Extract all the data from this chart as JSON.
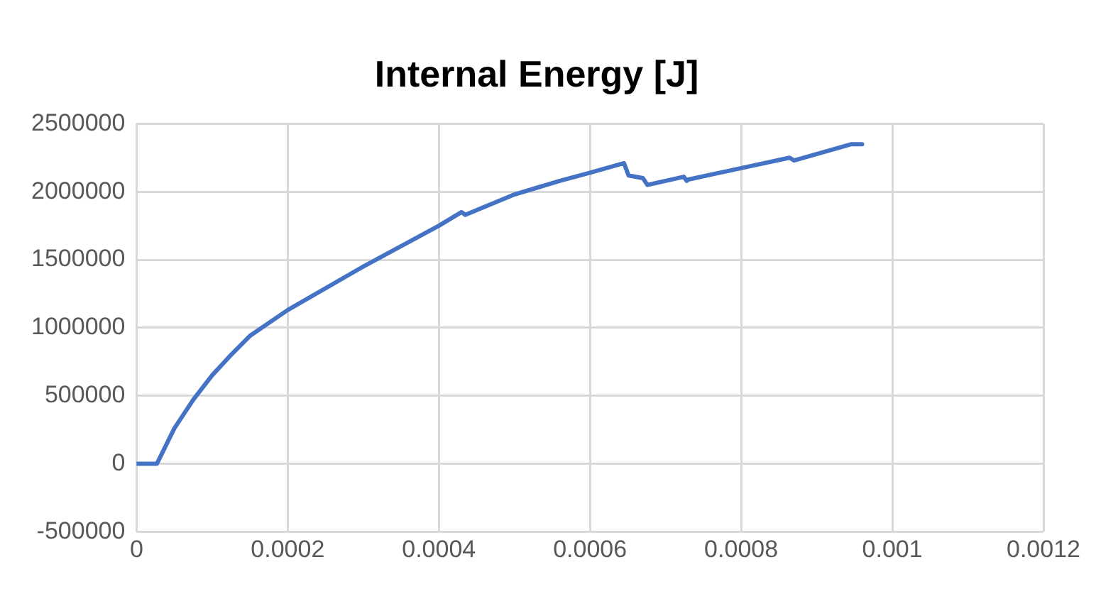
{
  "chart_data": {
    "type": "line",
    "title": "Internal Energy [J]",
    "x": [
      0,
      2.7e-05,
      5e-05,
      7.5e-05,
      0.0001,
      0.000125,
      0.00015,
      0.0002,
      0.0003,
      0.0004,
      0.00043,
      0.000435,
      0.0005,
      0.00056,
      0.0006,
      0.000645,
      0.000651,
      0.00067,
      0.000676,
      0.000724,
      0.000728,
      0.00073,
      0.000864,
      0.00087,
      0.000946,
      0.00096
    ],
    "series": [
      {
        "color": "#4472c4",
        "values": [
          0,
          0,
          260000,
          470000,
          650000,
          800000,
          940000,
          1130000,
          1450000,
          1750000,
          1850000,
          1830000,
          1980000,
          2080000,
          2140000,
          2210000,
          2120000,
          2100000,
          2050000,
          2110000,
          2080000,
          2090000,
          2250000,
          2230000,
          2350000,
          2350000
        ]
      }
    ],
    "xlim": [
      0,
      0.0012
    ],
    "xticks": [
      0,
      0.0002,
      0.0004,
      0.0006,
      0.0008,
      0.001,
      0.0012
    ],
    "ylim": [
      -500000,
      2500000
    ],
    "yticks": [
      -500000,
      0,
      500000,
      1000000,
      1500000,
      2000000,
      2500000
    ],
    "grid": true,
    "legend": false,
    "marker": "none",
    "line_style": "solid"
  }
}
